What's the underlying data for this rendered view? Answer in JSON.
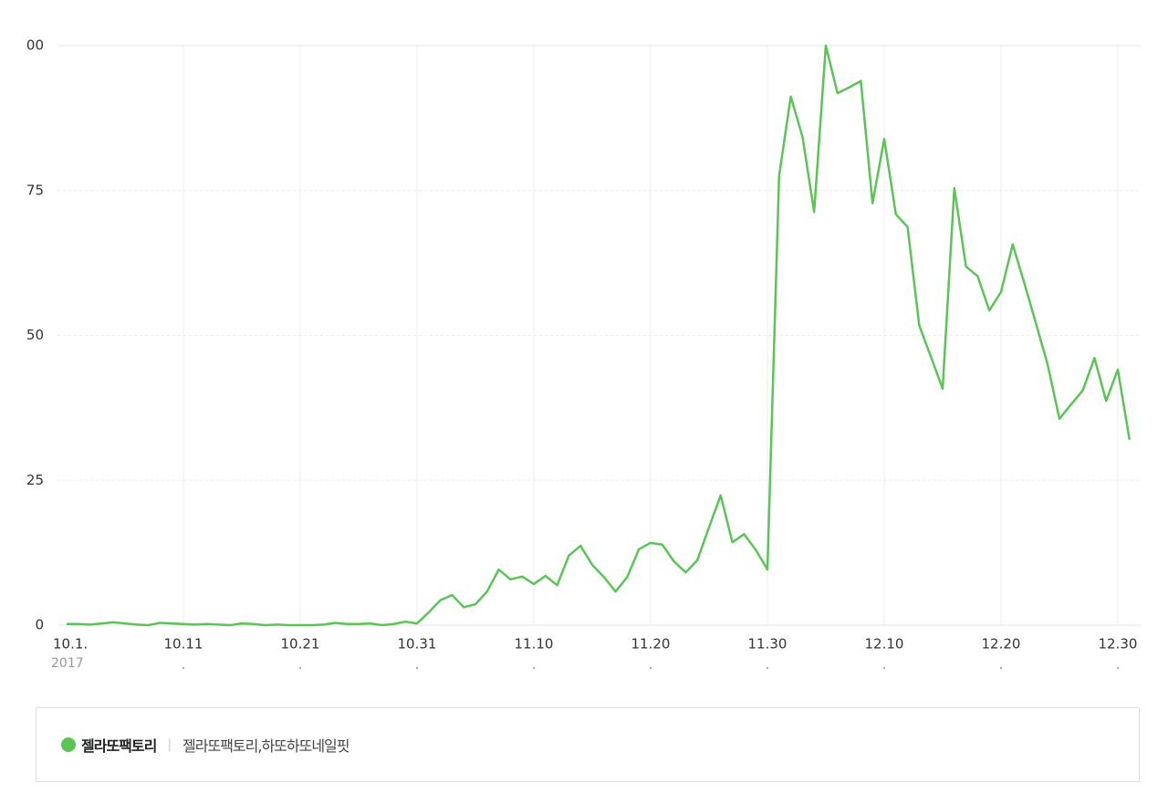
{
  "chart_data": {
    "type": "line",
    "categories": [
      "10.1.",
      null,
      null,
      null,
      null,
      null,
      null,
      null,
      null,
      null,
      "10.11",
      null,
      null,
      null,
      null,
      null,
      null,
      null,
      null,
      null,
      "10.21",
      null,
      null,
      null,
      null,
      null,
      null,
      null,
      null,
      null,
      "10.31",
      null,
      null,
      null,
      null,
      null,
      null,
      null,
      null,
      null,
      "11.10",
      null,
      null,
      null,
      null,
      null,
      null,
      null,
      null,
      null,
      "11.20",
      null,
      null,
      null,
      null,
      null,
      null,
      null,
      null,
      null,
      "11.30",
      null,
      null,
      null,
      null,
      null,
      null,
      null,
      null,
      null,
      "12.10",
      null,
      null,
      null,
      null,
      null,
      null,
      null,
      null,
      null,
      "12.20",
      null,
      null,
      null,
      null,
      null,
      null,
      null,
      null,
      null,
      "12.30",
      null
    ],
    "year_label": "2017",
    "series": [
      {
        "name": "젤라또팩토리",
        "keywords": "젤라또팩토리,하또하또네일핏",
        "color": "#5bc456",
        "values": [
          0.2,
          0.2,
          0.1,
          0.3,
          0.5,
          0.3,
          0.1,
          0,
          0.4,
          0.3,
          0.2,
          0.1,
          0.2,
          0.1,
          0,
          0.3,
          0.2,
          0,
          0.1,
          0,
          0,
          0,
          0.1,
          0.4,
          0.2,
          0.2,
          0.3,
          0,
          0.2,
          0.6,
          0.3,
          2.2,
          4.3,
          5.2,
          3.1,
          3.6,
          5.8,
          9.6,
          7.9,
          8.4,
          7.1,
          8.5,
          6.9,
          12,
          13.7,
          10.4,
          8.3,
          5.8,
          8.3,
          13.1,
          14.2,
          13.9,
          11,
          9.1,
          11.2,
          16.9,
          22.4,
          14.3,
          15.7,
          13,
          9.6,
          77.5,
          91.2,
          84.3,
          71.3,
          100,
          91.8,
          92.8,
          93.9,
          72.8,
          83.9,
          70.9,
          68.7,
          51.7,
          46.3,
          40.8,
          75.4,
          61.9,
          60.2,
          54.3,
          57.5,
          65.7,
          59,
          52,
          44.9,
          35.6,
          38.1,
          40.5,
          46.1,
          38.7,
          44.1,
          32
        ]
      }
    ],
    "ylim": [
      0,
      100
    ],
    "yticks": [
      0,
      25,
      50,
      75,
      {
        "value": 100,
        "label": "00"
      }
    ],
    "grid": true
  }
}
